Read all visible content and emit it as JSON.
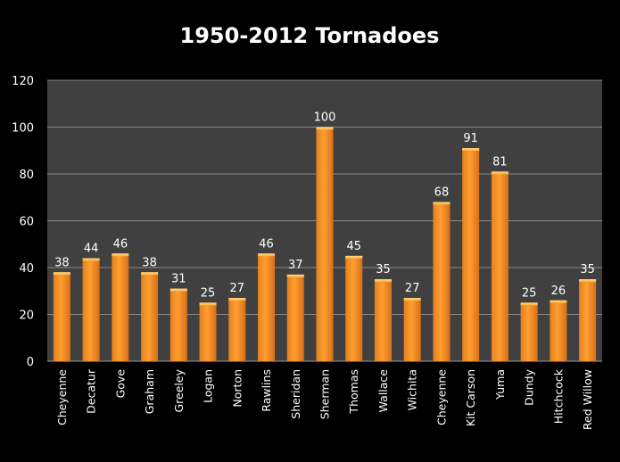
{
  "chart_data": {
    "type": "bar",
    "title": "1950-2012 Tornadoes",
    "xlabel": "",
    "ylabel": "",
    "categories": [
      "Cheyenne",
      "Decatur",
      "Gove",
      "Graham",
      "Greeley",
      "Logan",
      "Norton",
      "Rawlins",
      "Sheridan",
      "Sherman",
      "Thomas",
      "Wallace",
      "Wichita",
      "Cheyenne",
      "Kit Carson",
      "Yuma",
      "Dundy",
      "Hitchcock",
      "Red Willow"
    ],
    "values": [
      38,
      44,
      46,
      38,
      31,
      25,
      27,
      46,
      37,
      100,
      45,
      35,
      27,
      68,
      91,
      81,
      25,
      26,
      35
    ],
    "ylim": [
      0,
      120
    ],
    "yticks": [
      0,
      20,
      40,
      60,
      80,
      100,
      120
    ],
    "grid": true,
    "legend": "none",
    "data_labels": true,
    "colors": {
      "bar": "#f7931e",
      "bar_dark": "#d9701a",
      "plot_bg": "#404040",
      "background": "#000000",
      "grid": "#8a8a8a"
    }
  }
}
